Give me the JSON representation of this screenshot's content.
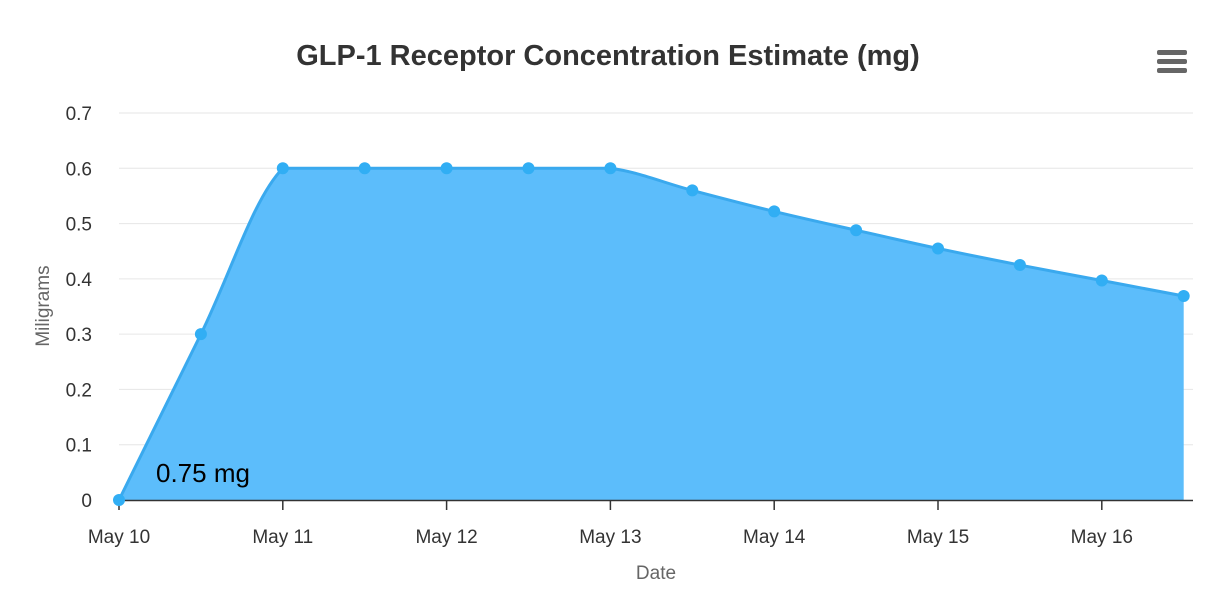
{
  "title": "GLP-1 Receptor Concentration Estimate (mg)",
  "menu": {
    "icon": "hamburger-menu-icon"
  },
  "chart_data": {
    "type": "area",
    "title": "GLP-1 Receptor Concentration Estimate (mg)",
    "xlabel": "Date",
    "ylabel": "Miligrams",
    "x_ticks": [
      "May 10",
      "May 11",
      "May 12",
      "May 13",
      "May 14",
      "May 15",
      "May 16"
    ],
    "y_ticks": [
      "0",
      "0.1",
      "0.2",
      "0.3",
      "0.4",
      "0.5",
      "0.6",
      "0.7"
    ],
    "ylim": [
      0,
      0.7
    ],
    "grid": true,
    "series": [
      {
        "values": [
          [
            "May 10 00:00",
            0
          ],
          [
            "May 10 12:00",
            0.3
          ],
          [
            "May 11 00:00",
            0.6
          ],
          [
            "May 11 12:00",
            0.6
          ],
          [
            "May 12 00:00",
            0.6
          ],
          [
            "May 12 12:00",
            0.6
          ],
          [
            "May 13 00:00",
            0.6
          ],
          [
            "May 13 12:00",
            0.56
          ],
          [
            "May 14 00:00",
            0.522
          ],
          [
            "May 14 12:00",
            0.488
          ],
          [
            "May 15 00:00",
            0.455
          ],
          [
            "May 15 12:00",
            0.425
          ],
          [
            "May 16 00:00",
            0.397
          ],
          [
            "May 16 12:00",
            0.369
          ]
        ]
      }
    ],
    "annotations": [
      "0.75 mg"
    ],
    "colors": {
      "fill": "#5cbdfb",
      "line": "#3aa9ee",
      "marker": "#31aef4"
    }
  }
}
